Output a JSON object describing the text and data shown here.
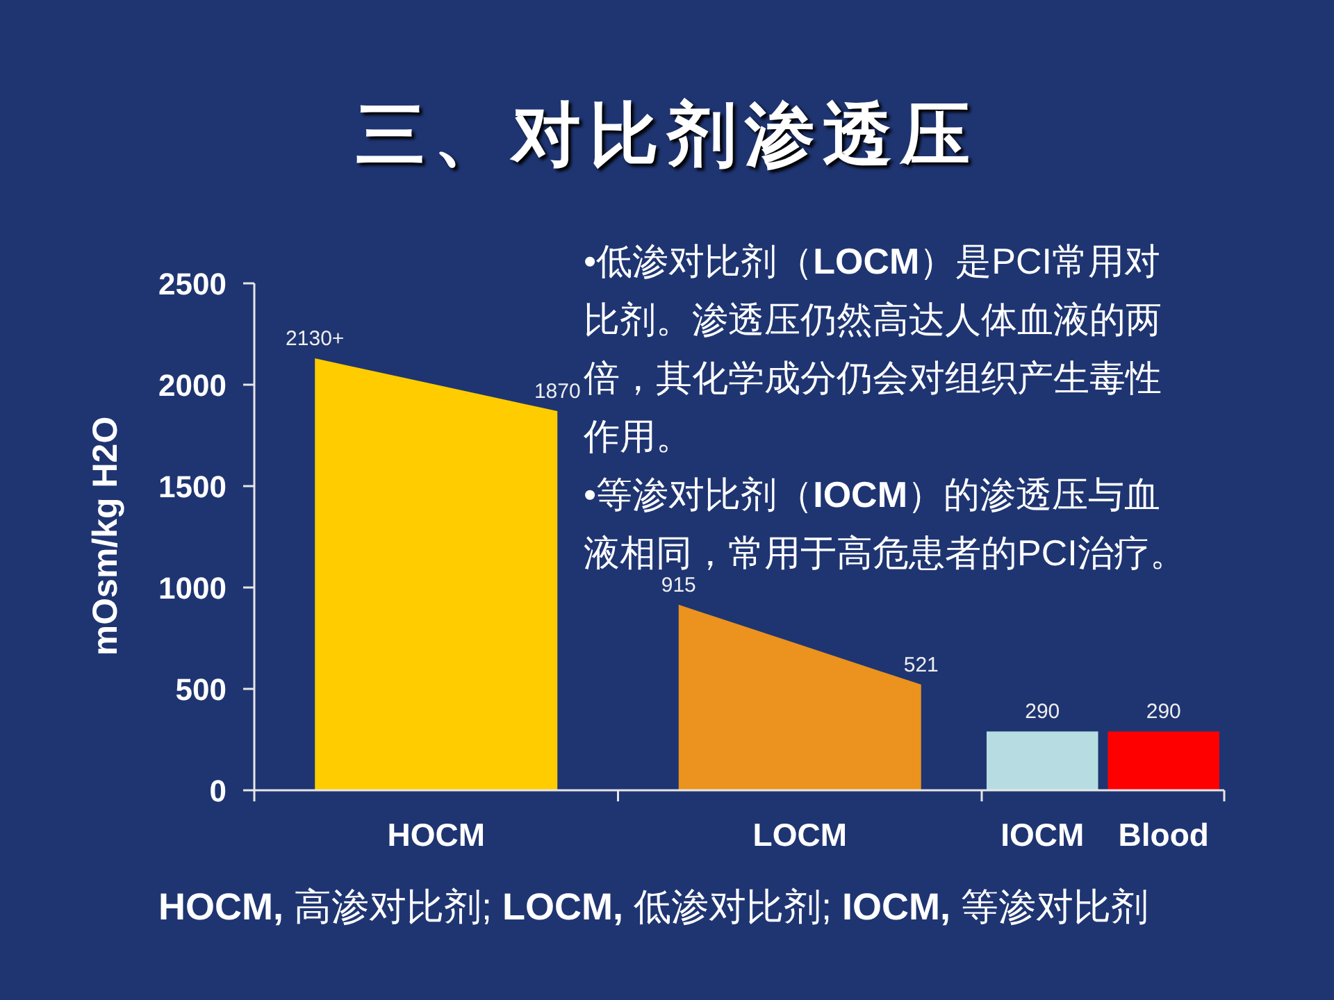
{
  "chart_data": {
    "type": "area",
    "title": "三、对比剂渗透压",
    "ylabel": "mOsm/kg H2O",
    "categories": [
      null,
      "HOCM",
      null,
      null,
      "LOCM",
      null,
      "IOCM",
      "Blood"
    ],
    "ylim": [
      0,
      2500
    ],
    "yticks": [
      0,
      500,
      1000,
      1500,
      2000,
      2500
    ],
    "series": [
      {
        "color": "#ffcc00",
        "values": [
          2130,
          2000,
          1870,
          null,
          null,
          null,
          null,
          null
        ],
        "value_labels": [
          "2130+",
          null,
          "1870",
          null,
          null,
          null,
          null,
          null
        ]
      },
      {
        "color": "#eb931e",
        "values": [
          null,
          null,
          null,
          915,
          718,
          521,
          null,
          null
        ],
        "value_labels": [
          null,
          null,
          null,
          "915",
          null,
          "521",
          null,
          null
        ]
      },
      {
        "type": "bar",
        "color": "#b7dde3",
        "values": [
          null,
          null,
          null,
          null,
          null,
          null,
          290,
          null
        ],
        "value_labels": [
          null,
          null,
          null,
          null,
          null,
          null,
          "290",
          null
        ]
      },
      {
        "type": "bar",
        "color": "#ff0000",
        "values": [
          null,
          null,
          null,
          null,
          null,
          null,
          null,
          290
        ],
        "value_labels": [
          null,
          null,
          null,
          null,
          null,
          null,
          null,
          "290"
        ]
      }
    ],
    "annotations": [
      "•低渗对比剂（**LOCM**）是PCI常用对比剂。渗透压仍然高达人体血液的两倍，其化学成分仍会对组织产生毒性作用。",
      "•等渗对比剂（**IOCM**）的渗透压与血液相同，常用于高危患者的PCI治疗。",
      "**HOCM,** 高渗对比剂; **LOCM,** 低渗对比剂; **IOCM,** 等渗对比剂"
    ]
  }
}
